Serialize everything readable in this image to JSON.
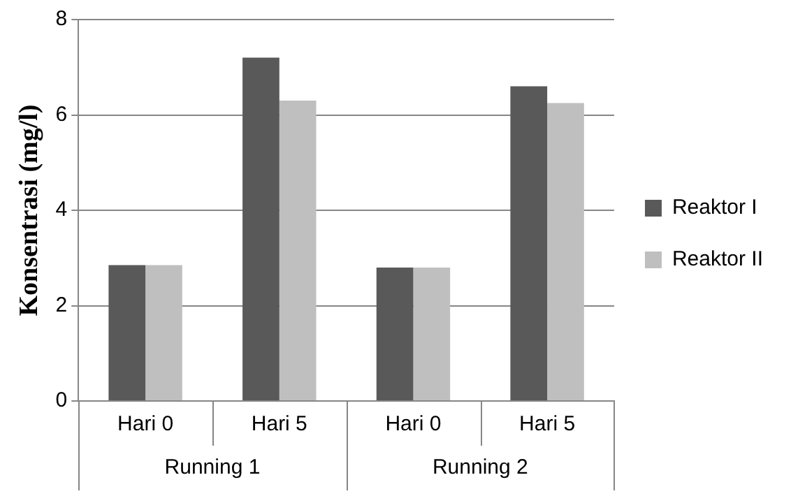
{
  "chart_data": {
    "type": "bar",
    "ylabel": "Konsentrasi (mg/l)",
    "categories": [
      "Hari 0",
      "Hari 5",
      "Hari 0",
      "Hari 5"
    ],
    "annotations": [
      "Running 1",
      "Running 2"
    ],
    "series": [
      {
        "name": "Reaktor I",
        "color": "#595959",
        "values": [
          2.85,
          7.2,
          2.8,
          6.6
        ]
      },
      {
        "name": "Reaktor II",
        "color": "#bfbfbf",
        "values": [
          2.85,
          6.3,
          2.8,
          6.25
        ]
      }
    ],
    "ylim": [
      0,
      8
    ],
    "yticks": [
      0,
      2,
      4,
      6,
      8
    ],
    "grid": "y",
    "legend": "right"
  }
}
